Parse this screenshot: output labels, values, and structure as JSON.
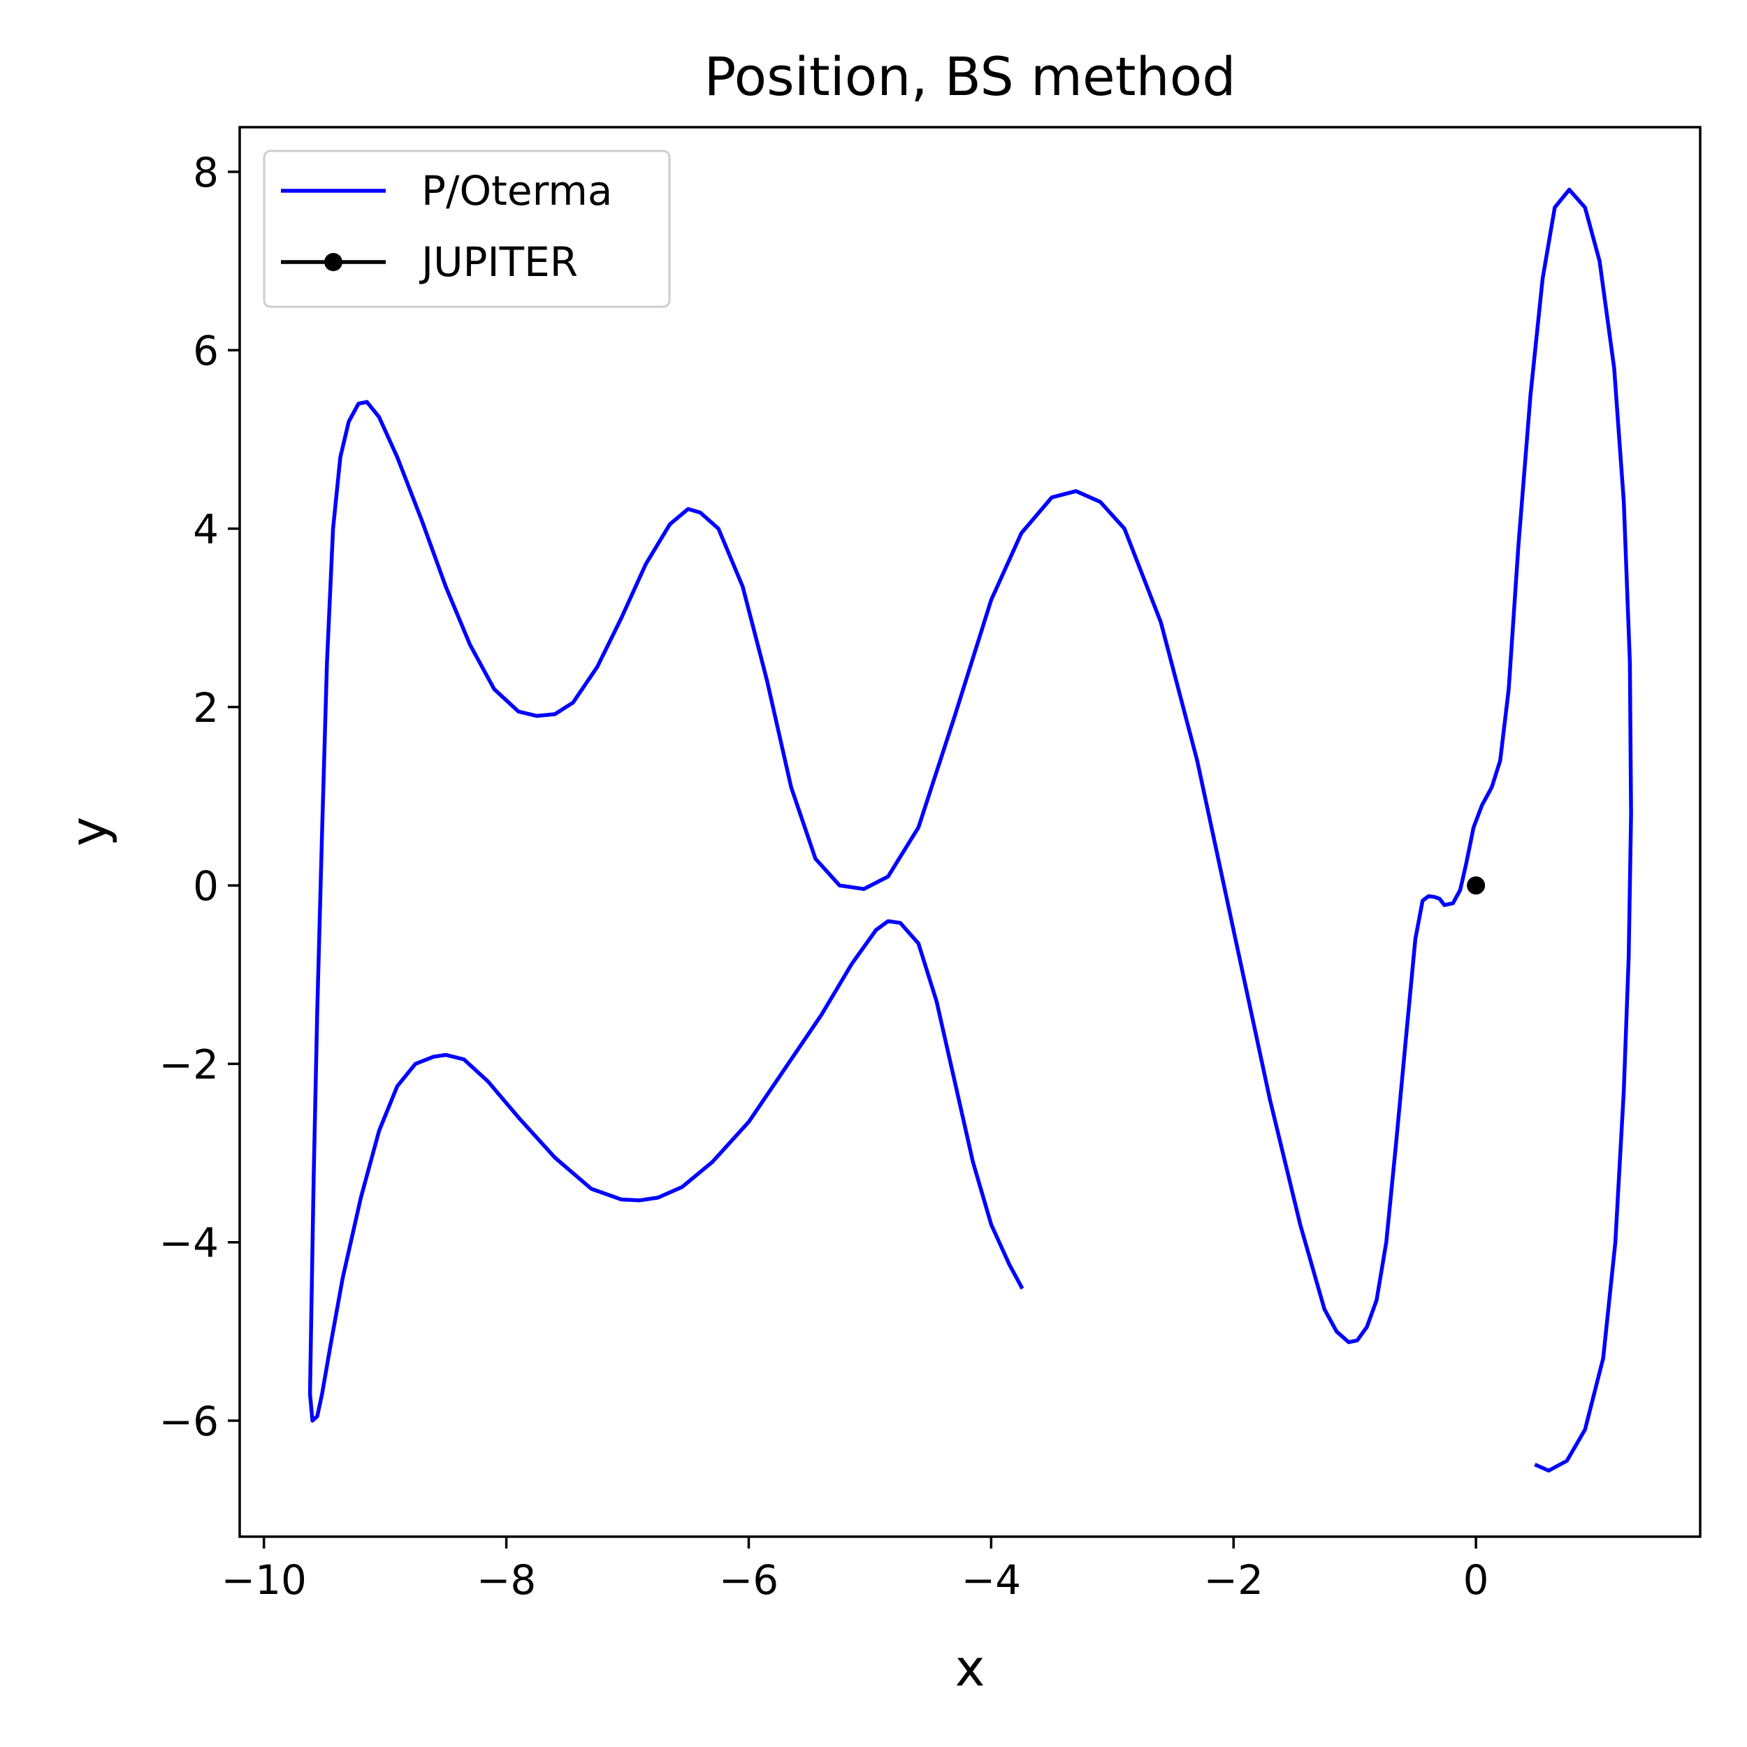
{
  "chart_data": {
    "type": "line",
    "title": "Position, BS method",
    "xlabel": "x",
    "ylabel": "y",
    "xlim": [
      -10.2,
      1.85
    ],
    "ylim": [
      -7.3,
      8.5
    ],
    "xticks": [
      -10,
      -8,
      -6,
      -4,
      -2,
      0
    ],
    "yticks": [
      -6,
      -4,
      -2,
      0,
      2,
      4,
      6,
      8
    ],
    "xtick_labels": [
      "−10",
      "−8",
      "−6",
      "−4",
      "−2",
      "0"
    ],
    "ytick_labels": [
      "−6",
      "−4",
      "−2",
      "0",
      "2",
      "4",
      "6",
      "8"
    ],
    "grid": false,
    "legend": {
      "placement": "upper-left"
    },
    "series": [
      {
        "name": "P/Oterma",
        "color": "#0000ff",
        "marker": "none",
        "points": [
          [
            0.5,
            -6.5
          ],
          [
            0.6,
            -6.56
          ],
          [
            0.75,
            -6.45
          ],
          [
            0.9,
            -6.1
          ],
          [
            1.05,
            -5.3
          ],
          [
            1.15,
            -4.0
          ],
          [
            1.22,
            -2.3
          ],
          [
            1.26,
            -0.8
          ],
          [
            1.28,
            0.8
          ],
          [
            1.27,
            2.5
          ],
          [
            1.22,
            4.3
          ],
          [
            1.14,
            5.8
          ],
          [
            1.02,
            7.0
          ],
          [
            0.9,
            7.6
          ],
          [
            0.77,
            7.8
          ],
          [
            0.65,
            7.6
          ],
          [
            0.55,
            6.8
          ],
          [
            0.45,
            5.5
          ],
          [
            0.35,
            3.8
          ],
          [
            0.27,
            2.2
          ],
          [
            0.2,
            1.4
          ],
          [
            0.13,
            1.1
          ],
          [
            0.05,
            0.9
          ],
          [
            -0.02,
            0.65
          ],
          [
            -0.08,
            0.25
          ],
          [
            -0.13,
            -0.05
          ],
          [
            -0.19,
            -0.2
          ],
          [
            -0.26,
            -0.22
          ],
          [
            -0.3,
            -0.15
          ],
          [
            -0.34,
            -0.13
          ],
          [
            -0.39,
            -0.12
          ],
          [
            -0.44,
            -0.17
          ],
          [
            -0.5,
            -0.6
          ],
          [
            -0.57,
            -1.6
          ],
          [
            -0.66,
            -2.9
          ],
          [
            -0.74,
            -4.0
          ],
          [
            -0.82,
            -4.65
          ],
          [
            -0.9,
            -4.95
          ],
          [
            -0.98,
            -5.1
          ],
          [
            -1.05,
            -5.12
          ],
          [
            -1.15,
            -5.0
          ],
          [
            -1.25,
            -4.75
          ],
          [
            -1.45,
            -3.8
          ],
          [
            -1.7,
            -2.4
          ],
          [
            -2.0,
            -0.5
          ],
          [
            -2.3,
            1.4
          ],
          [
            -2.6,
            2.95
          ],
          [
            -2.9,
            4.0
          ],
          [
            -3.1,
            4.3
          ],
          [
            -3.3,
            4.42
          ],
          [
            -3.5,
            4.35
          ],
          [
            -3.75,
            3.95
          ],
          [
            -4.0,
            3.2
          ],
          [
            -4.3,
            1.9
          ],
          [
            -4.6,
            0.65
          ],
          [
            -4.85,
            0.1
          ],
          [
            -5.05,
            -0.04
          ],
          [
            -5.25,
            0.0
          ],
          [
            -5.45,
            0.3
          ],
          [
            -5.65,
            1.1
          ],
          [
            -5.85,
            2.3
          ],
          [
            -6.05,
            3.35
          ],
          [
            -6.25,
            4.0
          ],
          [
            -6.4,
            4.18
          ],
          [
            -6.5,
            4.22
          ],
          [
            -6.65,
            4.05
          ],
          [
            -6.85,
            3.6
          ],
          [
            -7.05,
            3.0
          ],
          [
            -7.25,
            2.45
          ],
          [
            -7.45,
            2.05
          ],
          [
            -7.6,
            1.92
          ],
          [
            -7.75,
            1.9
          ],
          [
            -7.9,
            1.95
          ],
          [
            -8.1,
            2.2
          ],
          [
            -8.3,
            2.7
          ],
          [
            -8.5,
            3.35
          ],
          [
            -8.7,
            4.1
          ],
          [
            -8.9,
            4.8
          ],
          [
            -9.05,
            5.25
          ],
          [
            -9.15,
            5.42
          ],
          [
            -9.22,
            5.4
          ],
          [
            -9.3,
            5.2
          ],
          [
            -9.37,
            4.8
          ],
          [
            -9.43,
            4.0
          ],
          [
            -9.48,
            2.5
          ],
          [
            -9.52,
            0.6
          ],
          [
            -9.56,
            -1.4
          ],
          [
            -9.59,
            -3.3
          ],
          [
            -9.61,
            -4.9
          ],
          [
            -9.62,
            -5.7
          ],
          [
            -9.6,
            -6.0
          ],
          [
            -9.56,
            -5.95
          ],
          [
            -9.52,
            -5.7
          ],
          [
            -9.45,
            -5.15
          ],
          [
            -9.35,
            -4.4
          ],
          [
            -9.2,
            -3.5
          ],
          [
            -9.05,
            -2.75
          ],
          [
            -8.9,
            -2.25
          ],
          [
            -8.75,
            -2.0
          ],
          [
            -8.6,
            -1.92
          ],
          [
            -8.5,
            -1.9
          ],
          [
            -8.35,
            -1.95
          ],
          [
            -8.15,
            -2.2
          ],
          [
            -7.9,
            -2.6
          ],
          [
            -7.6,
            -3.05
          ],
          [
            -7.3,
            -3.4
          ],
          [
            -7.05,
            -3.52
          ],
          [
            -6.9,
            -3.53
          ],
          [
            -6.75,
            -3.5
          ],
          [
            -6.55,
            -3.38
          ],
          [
            -6.3,
            -3.1
          ],
          [
            -6.0,
            -2.65
          ],
          [
            -5.7,
            -2.05
          ],
          [
            -5.4,
            -1.45
          ],
          [
            -5.15,
            -0.88
          ],
          [
            -4.95,
            -0.5
          ],
          [
            -4.85,
            -0.4
          ],
          [
            -4.75,
            -0.42
          ],
          [
            -4.6,
            -0.65
          ],
          [
            -4.45,
            -1.3
          ],
          [
            -4.3,
            -2.2
          ],
          [
            -4.15,
            -3.1
          ],
          [
            -4.0,
            -3.8
          ],
          [
            -3.85,
            -4.25
          ],
          [
            -3.75,
            -4.5
          ]
        ]
      },
      {
        "name": "JUPITER",
        "color": "#000000",
        "marker": "circle",
        "points": [
          [
            0,
            0
          ]
        ]
      }
    ]
  }
}
